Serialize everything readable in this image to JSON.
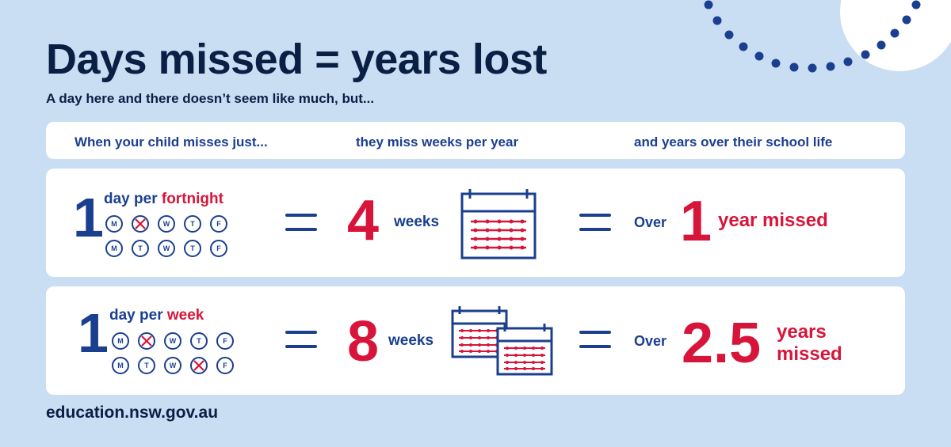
{
  "title": "Days missed = years lost",
  "subtitle": "A day here and there doesn’t seem like much, but...",
  "headers": {
    "col1": "When your child misses just...",
    "col2": "they miss weeks per year",
    "col3": "and years over their school life"
  },
  "rows": [
    {
      "count": "1",
      "label_prefix": "day per",
      "label_highlight": "fortnight",
      "week1": [
        {
          "letter": "M",
          "missed": false
        },
        {
          "letter": "T",
          "missed": true
        },
        {
          "letter": "W",
          "missed": false
        },
        {
          "letter": "T",
          "missed": false
        },
        {
          "letter": "F",
          "missed": false
        }
      ],
      "week2": [
        {
          "letter": "M",
          "missed": false
        },
        {
          "letter": "T",
          "missed": false
        },
        {
          "letter": "W",
          "missed": false
        },
        {
          "letter": "T",
          "missed": false
        },
        {
          "letter": "F",
          "missed": false
        }
      ],
      "weeks_value": "4",
      "weeks_label": "weeks",
      "over_label": "Over",
      "years_value": "1",
      "years_label": "year missed"
    },
    {
      "count": "1",
      "label_prefix": "day per",
      "label_highlight": "week",
      "week1": [
        {
          "letter": "M",
          "missed": false
        },
        {
          "letter": "T",
          "missed": true
        },
        {
          "letter": "W",
          "missed": false
        },
        {
          "letter": "T",
          "missed": false
        },
        {
          "letter": "F",
          "missed": false
        }
      ],
      "week2": [
        {
          "letter": "M",
          "missed": false
        },
        {
          "letter": "T",
          "missed": false
        },
        {
          "letter": "W",
          "missed": false
        },
        {
          "letter": "T",
          "missed": true
        },
        {
          "letter": "F",
          "missed": false
        }
      ],
      "weeks_value": "8",
      "weeks_label": "weeks",
      "over_label": "Over",
      "years_value": "2.5",
      "years_label_line1": "years",
      "years_label_line2": "missed"
    }
  ],
  "footer": "education.nsw.gov.au",
  "colors": {
    "background": "#c9ddf3",
    "navy": "#1b3f8f",
    "dark": "#0a1f44",
    "red": "#d7153a",
    "card": "#ffffff"
  }
}
